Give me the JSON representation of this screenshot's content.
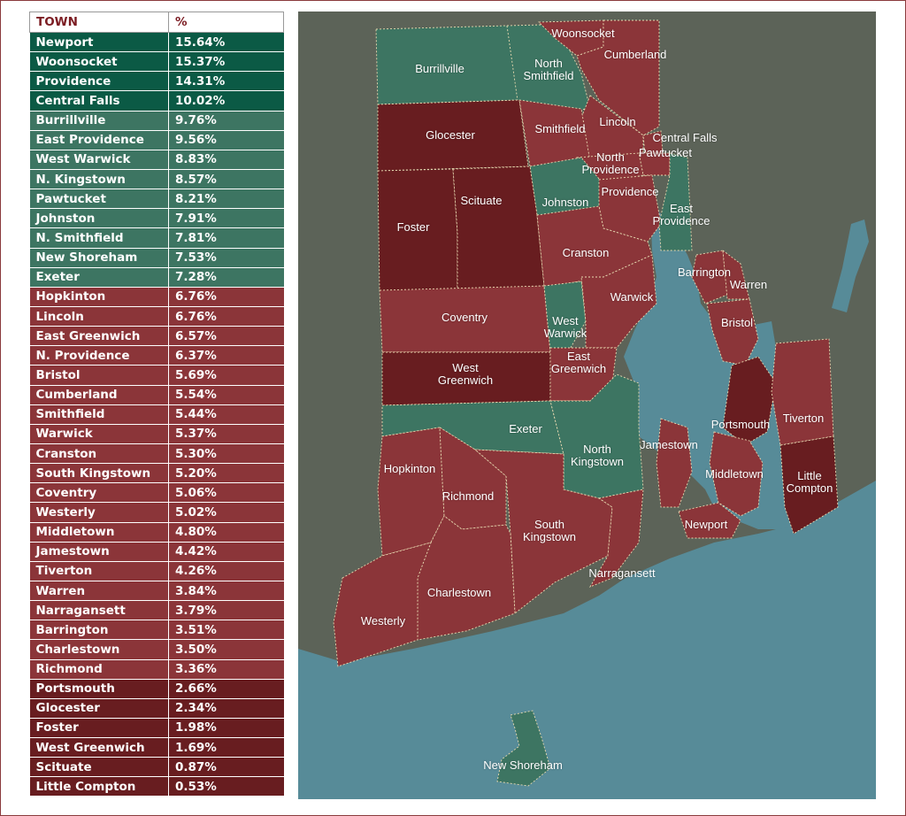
{
  "table": {
    "header": {
      "town": "TOWN",
      "percent": "%"
    },
    "rows": [
      {
        "town": "Newport",
        "percent": "15.64%"
      },
      {
        "town": "Woonsocket",
        "percent": "15.37%"
      },
      {
        "town": "Providence",
        "percent": "14.31%"
      },
      {
        "town": "Central Falls",
        "percent": "10.02%"
      },
      {
        "town": "Burrillville",
        "percent": "9.76%"
      },
      {
        "town": "East Providence",
        "percent": "9.56%"
      },
      {
        "town": "West Warwick",
        "percent": "8.83%"
      },
      {
        "town": "N. Kingstown",
        "percent": "8.57%"
      },
      {
        "town": "Pawtucket",
        "percent": "8.21%"
      },
      {
        "town": "Johnston",
        "percent": "7.91%"
      },
      {
        "town": "N. Smithfield",
        "percent": "7.81%"
      },
      {
        "town": "New Shoreham",
        "percent": "7.53%"
      },
      {
        "town": "Exeter",
        "percent": "7.28%"
      },
      {
        "town": "Hopkinton",
        "percent": "6.76%"
      },
      {
        "town": "Lincoln",
        "percent": "6.76%"
      },
      {
        "town": "East Greenwich",
        "percent": "6.57%"
      },
      {
        "town": "N. Providence",
        "percent": "6.37%"
      },
      {
        "town": "Bristol",
        "percent": "5.69%"
      },
      {
        "town": "Cumberland",
        "percent": "5.54%"
      },
      {
        "town": "Smithfield",
        "percent": "5.44%"
      },
      {
        "town": "Warwick",
        "percent": "5.37%"
      },
      {
        "town": "Cranston",
        "percent": "5.30%"
      },
      {
        "town": "South Kingstown",
        "percent": "5.20%"
      },
      {
        "town": "Coventry",
        "percent": "5.06%"
      },
      {
        "town": "Westerly",
        "percent": "5.02%"
      },
      {
        "town": "Middletown",
        "percent": "4.80%"
      },
      {
        "town": "Jamestown",
        "percent": "4.42%"
      },
      {
        "town": "Tiverton",
        "percent": "4.26%"
      },
      {
        "town": "Warren",
        "percent": "3.84%"
      },
      {
        "town": "Narragansett",
        "percent": "3.79%"
      },
      {
        "town": "Barrington",
        "percent": "3.51%"
      },
      {
        "town": "Charlestown",
        "percent": "3.50%"
      },
      {
        "town": "Richmond",
        "percent": "3.36%"
      },
      {
        "town": "Portsmouth",
        "percent": "2.66%"
      },
      {
        "town": "Glocester",
        "percent": "2.34%"
      },
      {
        "town": "Foster",
        "percent": "1.98%"
      },
      {
        "town": "West Greenwich",
        "percent": "1.69%"
      },
      {
        "town": "Scituate",
        "percent": "0.87%"
      },
      {
        "town": "Little Compton",
        "percent": "0.53%"
      }
    ]
  },
  "colors": {
    "tier_darkest_green": "#0b5a45",
    "tier_green": "#3d7562",
    "tier_red": "#8b3539",
    "tier_dark_red": "#681d20",
    "water": "#578b98",
    "land_outside": "#5c6358",
    "header_text": "#7b1c22"
  },
  "map": {
    "labels": {
      "woonsocket": "Woonsocket",
      "cumberland": "Cumberland",
      "burrillville": "Burrillville",
      "north_smithfield": "North\nSmithfield",
      "lincoln": "Lincoln",
      "glocester": "Glocester",
      "smithfield": "Smithfield",
      "central_falls": "Central Falls",
      "pawtucket": "Pawtucket",
      "north_providence": "North\nProvidence",
      "providence": "Providence",
      "johnston": "Johnston",
      "east_providence": "East\nProvidence",
      "scituate": "Scituate",
      "foster": "Foster",
      "cranston": "Cranston",
      "barrington": "Barrington",
      "warren": "Warren",
      "warwick": "Warwick",
      "coventry": "Coventry",
      "west_warwick": "West\nWarwick",
      "bristol": "Bristol",
      "west_greenwich": "West\nGreenwich",
      "east_greenwich": "East\nGreenwich",
      "tiverton": "Tiverton",
      "portsmouth": "Portsmouth",
      "exeter": "Exeter",
      "jamestown": "Jamestown",
      "north_kingstown": "North\nKingstown",
      "hopkinton": "Hopkinton",
      "middletown": "Middletown",
      "little_compton": "Little\nCompton",
      "richmond": "Richmond",
      "newport": "Newport",
      "south_kingstown": "South\nKingstown",
      "narragansett": "Narragansett",
      "charlestown": "Charlestown",
      "westerly": "Westerly",
      "new_shoreham": "New Shoreham"
    }
  }
}
